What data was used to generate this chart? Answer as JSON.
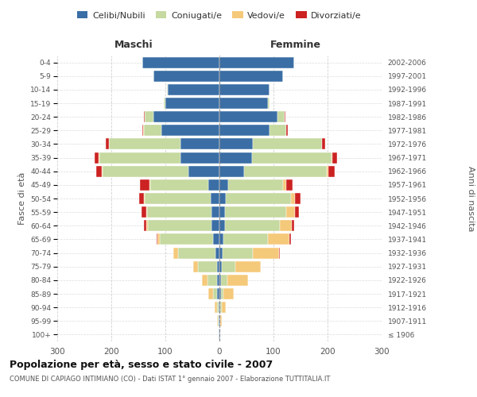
{
  "age_groups": [
    "100+",
    "95-99",
    "90-94",
    "85-89",
    "80-84",
    "75-79",
    "70-74",
    "65-69",
    "60-64",
    "55-59",
    "50-54",
    "45-49",
    "40-44",
    "35-39",
    "30-34",
    "25-29",
    "20-24",
    "15-19",
    "10-14",
    "5-9",
    "0-4"
  ],
  "birth_years": [
    "≤ 1906",
    "1907-1911",
    "1912-1916",
    "1917-1921",
    "1922-1926",
    "1927-1931",
    "1932-1936",
    "1937-1941",
    "1942-1946",
    "1947-1951",
    "1952-1956",
    "1957-1961",
    "1962-1966",
    "1967-1971",
    "1972-1976",
    "1977-1981",
    "1982-1986",
    "1987-1991",
    "1992-1996",
    "1997-2001",
    "2002-2006"
  ],
  "male_celibi": [
    1,
    2,
    2,
    4,
    4,
    5,
    8,
    12,
    14,
    14,
    16,
    20,
    58,
    72,
    72,
    108,
    122,
    100,
    96,
    122,
    142
  ],
  "male_coniugati": [
    0,
    1,
    3,
    8,
    18,
    35,
    68,
    98,
    118,
    120,
    122,
    108,
    158,
    150,
    132,
    32,
    16,
    3,
    1,
    0,
    0
  ],
  "male_vedovi": [
    0,
    1,
    4,
    8,
    10,
    8,
    10,
    5,
    3,
    2,
    1,
    1,
    2,
    1,
    1,
    1,
    0,
    0,
    0,
    0,
    0
  ],
  "male_divorziati": [
    0,
    0,
    0,
    0,
    0,
    0,
    0,
    1,
    5,
    8,
    10,
    18,
    10,
    8,
    5,
    2,
    1,
    0,
    0,
    0,
    0
  ],
  "female_celibi": [
    1,
    1,
    2,
    3,
    3,
    4,
    6,
    8,
    10,
    10,
    12,
    16,
    46,
    60,
    62,
    92,
    108,
    90,
    92,
    118,
    138
  ],
  "female_coniugati": [
    0,
    1,
    2,
    5,
    12,
    26,
    56,
    82,
    102,
    114,
    120,
    102,
    152,
    147,
    127,
    32,
    13,
    2,
    1,
    0,
    0
  ],
  "female_vedovi": [
    1,
    2,
    8,
    18,
    38,
    46,
    48,
    40,
    22,
    15,
    8,
    5,
    3,
    2,
    1,
    0,
    0,
    0,
    0,
    0,
    0
  ],
  "female_divorziati": [
    0,
    0,
    0,
    0,
    0,
    1,
    2,
    2,
    4,
    8,
    10,
    12,
    12,
    8,
    5,
    2,
    1,
    0,
    0,
    0,
    0
  ],
  "colors": {
    "celibi": "#3a6ea5",
    "coniugati": "#c5d9a0",
    "vedovi": "#f5c97a",
    "divorziati": "#cc2222"
  },
  "title": "Popolazione per età, sesso e stato civile - 2007",
  "subtitle": "COMUNE DI CAPIAGO INTIMIANO (CO) - Dati ISTAT 1° gennaio 2007 - Elaborazione TUTTITALIA.IT",
  "xlabel_left": "Maschi",
  "xlabel_right": "Femmine",
  "ylabel_left": "Fasce di età",
  "ylabel_right": "Anni di nascita",
  "xlim": 300,
  "background_color": "#ffffff",
  "grid_color": "#cccccc"
}
